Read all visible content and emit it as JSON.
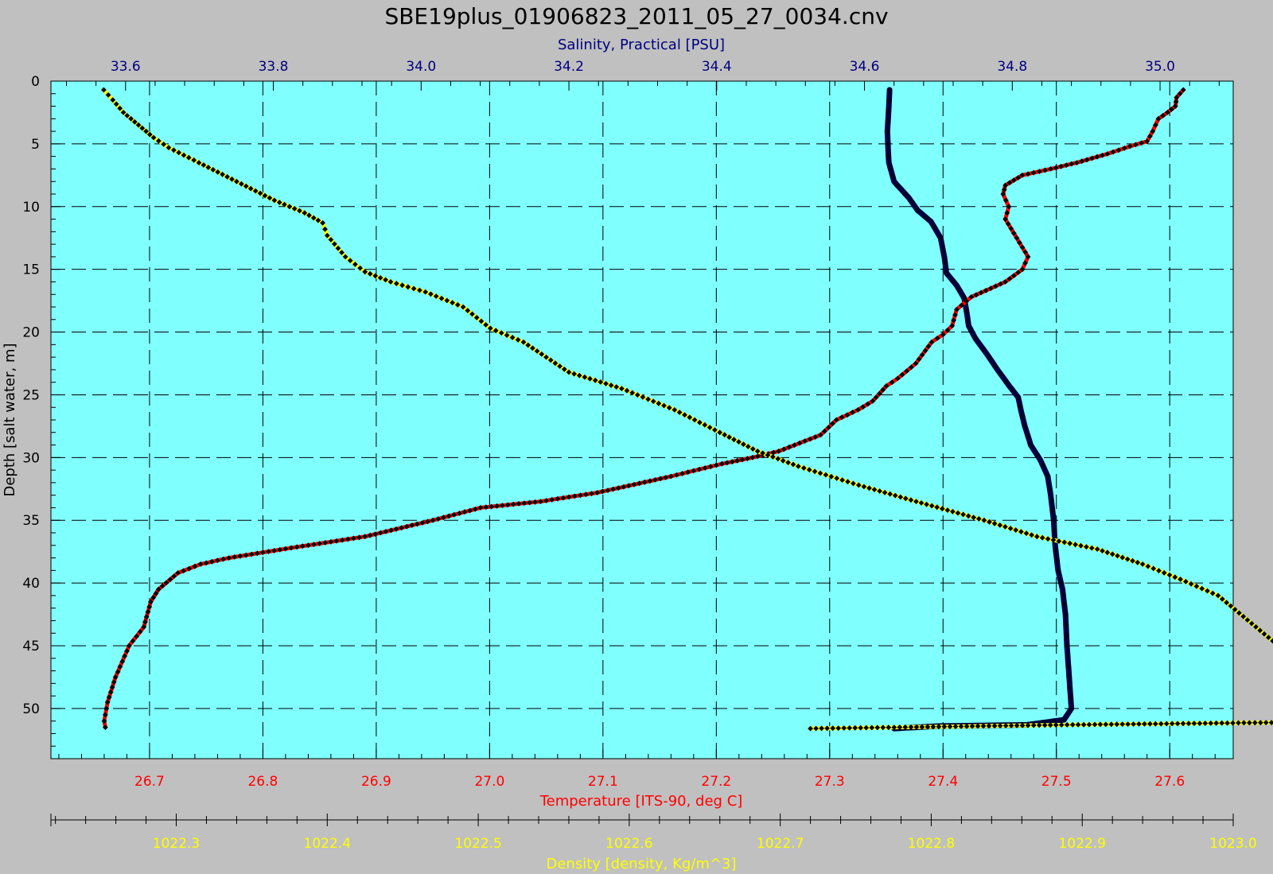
{
  "chart_data": {
    "type": "line",
    "title": "SBE19plus_01906823_2011_05_27_0034.cnv",
    "ylabel": "Depth [salt water, m]",
    "ylim": [
      0,
      54
    ],
    "y_ticks": [
      0,
      5,
      10,
      15,
      20,
      25,
      30,
      35,
      40,
      45,
      50
    ],
    "grid": true,
    "colors": {
      "background": "#c0c0c0",
      "plot_area": "#80ffff",
      "temperature": "#ff0000",
      "salinity": "#000040",
      "density": "#ffff00",
      "salinity_axis_text": "#000080",
      "marker": "#000000"
    },
    "axes": {
      "temperature": {
        "label": "Temperature [ITS-90, deg C]",
        "range": [
          26.613,
          27.656
        ],
        "ticks": [
          26.7,
          26.8,
          26.9,
          27.0,
          27.1,
          27.2,
          27.3,
          27.4,
          27.5,
          27.6
        ]
      },
      "salinity": {
        "label": "Salinity, Practical [PSU]",
        "range": [
          33.499,
          35.099
        ],
        "ticks": [
          33.6,
          33.8,
          34.0,
          34.2,
          34.4,
          34.6,
          34.8,
          35.0
        ]
      },
      "density": {
        "label": "Density [density, Kg/m^3]",
        "range": [
          1022.217,
          1023.0
        ],
        "ticks": [
          1022.3,
          1022.4,
          1022.5,
          1022.6,
          1022.7,
          1022.8,
          1022.9,
          1023.0
        ]
      }
    },
    "series": [
      {
        "name": "Temperature [ITS-90, deg C]",
        "axis": "temperature",
        "color": "#ff0000",
        "points": [
          [
            27.612,
            0.7
          ],
          [
            27.606,
            1.3
          ],
          [
            27.605,
            2.0
          ],
          [
            27.598,
            2.5
          ],
          [
            27.59,
            3.0
          ],
          [
            27.585,
            4.0
          ],
          [
            27.58,
            4.8
          ],
          [
            27.565,
            5.2
          ],
          [
            27.545,
            5.8
          ],
          [
            27.518,
            6.5
          ],
          [
            27.495,
            7.0
          ],
          [
            27.47,
            7.5
          ],
          [
            27.455,
            8.3
          ],
          [
            27.453,
            9.0
          ],
          [
            27.458,
            10.0
          ],
          [
            27.455,
            11.0
          ],
          [
            27.465,
            12.5
          ],
          [
            27.475,
            14.0
          ],
          [
            27.47,
            15.0
          ],
          [
            27.455,
            16.0
          ],
          [
            27.425,
            17.2
          ],
          [
            27.412,
            18.2
          ],
          [
            27.408,
            19.5
          ],
          [
            27.4,
            20.2
          ],
          [
            27.39,
            20.8
          ],
          [
            27.376,
            22.5
          ],
          [
            27.36,
            23.7
          ],
          [
            27.35,
            24.3
          ],
          [
            27.338,
            25.5
          ],
          [
            27.325,
            26.2
          ],
          [
            27.306,
            27.0
          ],
          [
            27.292,
            28.2
          ],
          [
            27.255,
            29.5
          ],
          [
            27.232,
            30.0
          ],
          [
            27.205,
            30.5
          ],
          [
            27.16,
            31.5
          ],
          [
            27.095,
            32.8
          ],
          [
            27.045,
            33.5
          ],
          [
            26.992,
            34.0
          ],
          [
            26.95,
            35.0
          ],
          [
            26.89,
            36.3
          ],
          [
            26.825,
            37.2
          ],
          [
            26.77,
            38.0
          ],
          [
            26.745,
            38.5
          ],
          [
            26.725,
            39.2
          ],
          [
            26.708,
            40.5
          ],
          [
            26.701,
            41.5
          ],
          [
            26.695,
            43.5
          ],
          [
            26.682,
            45.0
          ],
          [
            26.67,
            47.5
          ],
          [
            26.663,
            49.5
          ],
          [
            26.66,
            51.0
          ],
          [
            26.661,
            51.5
          ]
        ]
      },
      {
        "name": "Salinity, Practical [PSU]",
        "axis": "salinity",
        "color": "#000040",
        "points": [
          [
            34.634,
            0.7
          ],
          [
            34.633,
            2.0
          ],
          [
            34.631,
            4.0
          ],
          [
            34.632,
            5.5
          ],
          [
            34.633,
            6.5
          ],
          [
            34.64,
            8.0
          ],
          [
            34.66,
            9.3
          ],
          [
            34.672,
            10.3
          ],
          [
            34.69,
            11.2
          ],
          [
            34.703,
            12.5
          ],
          [
            34.708,
            14.0
          ],
          [
            34.711,
            15.3
          ],
          [
            34.725,
            16.3
          ],
          [
            34.735,
            17.3
          ],
          [
            34.738,
            18.3
          ],
          [
            34.741,
            19.5
          ],
          [
            34.75,
            20.5
          ],
          [
            34.765,
            21.7
          ],
          [
            34.78,
            23.0
          ],
          [
            34.796,
            24.3
          ],
          [
            34.808,
            25.2
          ],
          [
            34.812,
            26.3
          ],
          [
            34.817,
            27.5
          ],
          [
            34.825,
            29.0
          ],
          [
            34.838,
            30.2
          ],
          [
            34.848,
            31.5
          ],
          [
            34.852,
            33.0
          ],
          [
            34.856,
            35.0
          ],
          [
            34.858,
            37.0
          ],
          [
            34.862,
            39.0
          ],
          [
            34.868,
            40.5
          ],
          [
            34.872,
            42.5
          ],
          [
            34.874,
            45.0
          ],
          [
            34.877,
            47.5
          ],
          [
            34.88,
            50.0
          ],
          [
            34.87,
            50.9
          ],
          [
            34.82,
            51.3
          ],
          [
            34.7,
            51.4
          ],
          [
            34.64,
            51.6
          ]
        ]
      },
      {
        "name": "Density [density, Kg/m^3]",
        "axis": "density",
        "color": "#ffff00",
        "points": [
          [
            1022.252,
            0.7
          ],
          [
            1022.258,
            1.5
          ],
          [
            1022.265,
            2.5
          ],
          [
            1022.275,
            3.5
          ],
          [
            1022.285,
            4.5
          ],
          [
            1022.295,
            5.3
          ],
          [
            1022.315,
            6.5
          ],
          [
            1022.34,
            8.0
          ],
          [
            1022.365,
            9.5
          ],
          [
            1022.385,
            10.5
          ],
          [
            1022.397,
            11.3
          ],
          [
            1022.4,
            12.3
          ],
          [
            1022.412,
            14.0
          ],
          [
            1022.425,
            15.2
          ],
          [
            1022.442,
            16.0
          ],
          [
            1022.465,
            16.8
          ],
          [
            1022.49,
            18.0
          ],
          [
            1022.508,
            19.7
          ],
          [
            1022.53,
            20.8
          ],
          [
            1022.545,
            22.0
          ],
          [
            1022.56,
            23.2
          ],
          [
            1022.595,
            24.5
          ],
          [
            1022.63,
            26.2
          ],
          [
            1022.66,
            28.0
          ],
          [
            1022.685,
            29.5
          ],
          [
            1022.712,
            30.7
          ],
          [
            1022.752,
            32.2
          ],
          [
            1022.79,
            33.5
          ],
          [
            1022.835,
            35.0
          ],
          [
            1022.87,
            36.3
          ],
          [
            1022.91,
            37.3
          ],
          [
            1022.94,
            38.5
          ],
          [
            1022.965,
            39.7
          ],
          [
            1022.99,
            41.0
          ],
          [
            1023.015,
            43.5
          ],
          [
            1023.04,
            46.0
          ],
          [
            1023.075,
            49.0
          ],
          [
            1023.1,
            50.2
          ],
          [
            1023.097,
            51.0
          ],
          [
            1023.04,
            51.1
          ],
          [
            1022.89,
            51.3
          ],
          [
            1022.72,
            51.6
          ]
        ]
      }
    ]
  }
}
